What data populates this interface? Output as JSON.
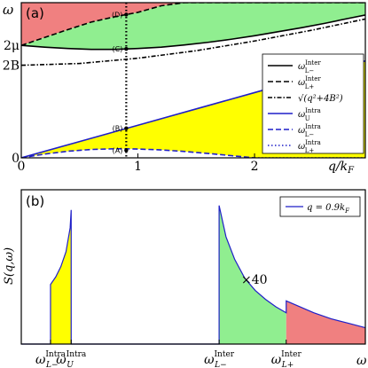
{
  "chart_data": [
    {
      "type": "line",
      "panel_label": "(a)",
      "ylabel": "ω",
      "xlabel": "q/k_F",
      "xlim": [
        0,
        2.95
      ],
      "ylim": [
        0,
        3.52
      ],
      "x_ticks": [
        {
          "value": 0,
          "label": "0"
        },
        {
          "value": 1,
          "label": "1"
        },
        {
          "value": 2,
          "label": "2"
        }
      ],
      "y_ticks": [
        {
          "value": 0,
          "label": "0"
        },
        {
          "value": 2.1,
          "label": "2B"
        },
        {
          "value": 2.55,
          "label": "2μ"
        }
      ],
      "marker_line_x": 0.9,
      "points": [
        {
          "label": "(A)",
          "x": 0.9,
          "y": 0.17
        },
        {
          "label": "(B)",
          "x": 0.9,
          "y": 0.67
        },
        {
          "label": "(C)",
          "x": 0.9,
          "y": 2.47
        },
        {
          "label": "(D)",
          "x": 0.9,
          "y": 3.25
        }
      ],
      "series": [
        {
          "name": "ω_{L−}^{Inter}",
          "style": "solid",
          "color": "#000000",
          "x": [
            0,
            0.2,
            0.4,
            0.6,
            0.8,
            0.9,
            1.0,
            1.2,
            1.4,
            1.6,
            1.8,
            2.0,
            2.2,
            2.4,
            2.6,
            2.8,
            2.95
          ],
          "y": [
            2.55,
            2.51,
            2.48,
            2.46,
            2.46,
            2.47,
            2.48,
            2.51,
            2.56,
            2.62,
            2.69,
            2.77,
            2.86,
            2.95,
            3.05,
            3.16,
            3.24
          ]
        },
        {
          "name": "ω_{L+}^{Inter}",
          "style": "dashed",
          "color": "#000000",
          "x": [
            0,
            0.2,
            0.4,
            0.6,
            0.8,
            0.9,
            1.0,
            1.2,
            1.4,
            1.6,
            1.8,
            2.0,
            2.2,
            2.4,
            2.6,
            2.8,
            2.95
          ],
          "y": [
            2.55,
            2.73,
            2.91,
            3.08,
            3.2,
            3.25,
            3.3,
            3.45,
            3.52,
            3.52,
            3.52,
            3.52,
            3.52,
            3.52,
            3.52,
            3.52,
            3.52
          ]
        },
        {
          "name": "sqrt(q^2+4B^2)",
          "style": "dashdot",
          "color": "#000000",
          "x": [
            0,
            0.5,
            1.0,
            1.5,
            2.0,
            2.5,
            2.95
          ],
          "y": [
            2.1,
            2.14,
            2.26,
            2.43,
            2.65,
            2.9,
            3.15
          ]
        },
        {
          "name": "ω_U^{Intra}",
          "style": "solid",
          "color": "#1f1fc8",
          "x": [
            0,
            0.5,
            1.0,
            1.5,
            2.0,
            2.5,
            2.95
          ],
          "y": [
            0,
            0.37,
            0.74,
            1.11,
            1.48,
            1.85,
            2.2
          ]
        },
        {
          "name": "ω_{L−}^{Intra}",
          "style": "dashed",
          "color": "#1f1fc8",
          "x": [
            0,
            0.2,
            0.4,
            0.6,
            0.8,
            0.9,
            1.0,
            1.2,
            1.4,
            1.6,
            1.8,
            2.0
          ],
          "y": [
            0,
            0.085,
            0.15,
            0.19,
            0.205,
            0.205,
            0.2,
            0.18,
            0.145,
            0.1,
            0.05,
            0
          ]
        },
        {
          "name": "ω_{L+}^{Intra}",
          "style": "dotted",
          "color": "#1f1fc8",
          "x": [
            2.0,
            2.95
          ],
          "y": [
            0,
            0
          ]
        }
      ],
      "fills": [
        {
          "between": [
            "ω_{L−}^{Intra}",
            "ω_U^{Intra}"
          ],
          "color": "#ffff00"
        },
        {
          "between": [
            "ω_{L−}^{Inter}",
            "ω_{L+}^{Inter}"
          ],
          "color": "#90ee90"
        },
        {
          "above": "ω_{L+}^{Inter}",
          "color": "#f08080"
        }
      ],
      "legend_position": "right",
      "legend_entries": [
        {
          "main": "ω",
          "sub": "L−",
          "sup": "Inter",
          "style": "solid",
          "color": "#000000"
        },
        {
          "main": "ω",
          "sub": "L+",
          "sup": "Inter",
          "style": "dashed",
          "color": "#000000"
        },
        {
          "main": "√(q²+4B²)",
          "sub": "",
          "sup": "",
          "style": "dashdot",
          "color": "#000000"
        },
        {
          "main": "ω",
          "sub": "U",
          "sup": "Intra",
          "style": "solid",
          "color": "#1f1fc8"
        },
        {
          "main": "ω",
          "sub": "L−",
          "sup": "Intra",
          "style": "dashed",
          "color": "#1f1fc8"
        },
        {
          "main": "ω",
          "sub": "L+",
          "sup": "Intra",
          "style": "dotted",
          "color": "#1f1fc8"
        }
      ]
    },
    {
      "type": "line",
      "panel_label": "(b)",
      "ylabel": "S(q,ω)",
      "xlabel": "ω",
      "xlim": [
        0,
        10
      ],
      "ylim": [
        0,
        1.0
      ],
      "annotation": "×40",
      "x_ticks": [
        {
          "value": 0.85,
          "main": "ω",
          "sub": "L−",
          "sup": "Intra"
        },
        {
          "value": 1.45,
          "main": "ω",
          "sub": "U",
          "sup": "Intra"
        },
        {
          "value": 5.75,
          "main": "ω",
          "sub": "L−",
          "sup": "Inter"
        },
        {
          "value": 7.7,
          "main": "ω",
          "sub": "L+",
          "sup": "Inter"
        }
      ],
      "series": [
        {
          "name": "q=0.9k_F",
          "color": "#1f1fc8",
          "x": [
            0,
            0.85,
            0.85,
            1.0,
            1.15,
            1.3,
            1.42,
            1.45,
            1.45,
            5.75,
            5.75,
            5.95,
            6.2,
            6.5,
            6.8,
            7.1,
            7.4,
            7.7,
            7.7,
            8.0,
            8.5,
            9.0,
            9.5,
            10.0
          ],
          "y": [
            0,
            0,
            0.4,
            0.45,
            0.52,
            0.62,
            0.78,
            0.9,
            0,
            0,
            0.93,
            0.72,
            0.57,
            0.44,
            0.36,
            0.3,
            0.25,
            0.21,
            0.29,
            0.26,
            0.21,
            0.17,
            0.14,
            0.11
          ]
        }
      ],
      "fills": [
        {
          "x_range": [
            0.85,
            1.45
          ],
          "color": "#ffff00"
        },
        {
          "x_range": [
            5.75,
            7.7
          ],
          "color": "#90ee90"
        },
        {
          "x_range": [
            7.7,
            10.0
          ],
          "color": "#f08080"
        }
      ],
      "legend_position": "top-right",
      "legend_entries": [
        {
          "label": "q = 0.9k_F",
          "color": "#1f1fc8"
        }
      ]
    }
  ]
}
